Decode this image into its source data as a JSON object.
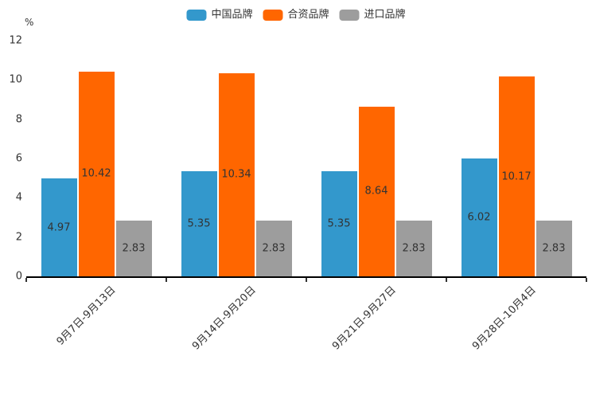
{
  "chart_data": {
    "type": "bar",
    "title": "",
    "ylabel": "%",
    "xlabel": "",
    "ylim": [
      0,
      12
    ],
    "yticks": [
      0,
      2,
      4,
      6,
      8,
      10,
      12
    ],
    "grid": false,
    "legend_position": "top",
    "value_label_position": "inside-center",
    "value_label_decimals": 2,
    "categories": [
      "9月7日-9月13日",
      "9月14日-9月20日",
      "9月21日-9月27日",
      "9月28日-10月4日"
    ],
    "series": [
      {
        "name": "中国品牌",
        "color": "#3398cc",
        "values": [
          4.97,
          5.35,
          5.35,
          6.02
        ]
      },
      {
        "name": "合资品牌",
        "color": "#ff6600",
        "values": [
          10.42,
          10.34,
          8.64,
          10.17
        ]
      },
      {
        "name": "进口品牌",
        "color": "#9d9d9d",
        "values": [
          2.83,
          2.83,
          2.83,
          2.83
        ]
      }
    ],
    "colors": {
      "axis_line": "#000000",
      "text": "#333333",
      "background": "#ffffff"
    }
  }
}
